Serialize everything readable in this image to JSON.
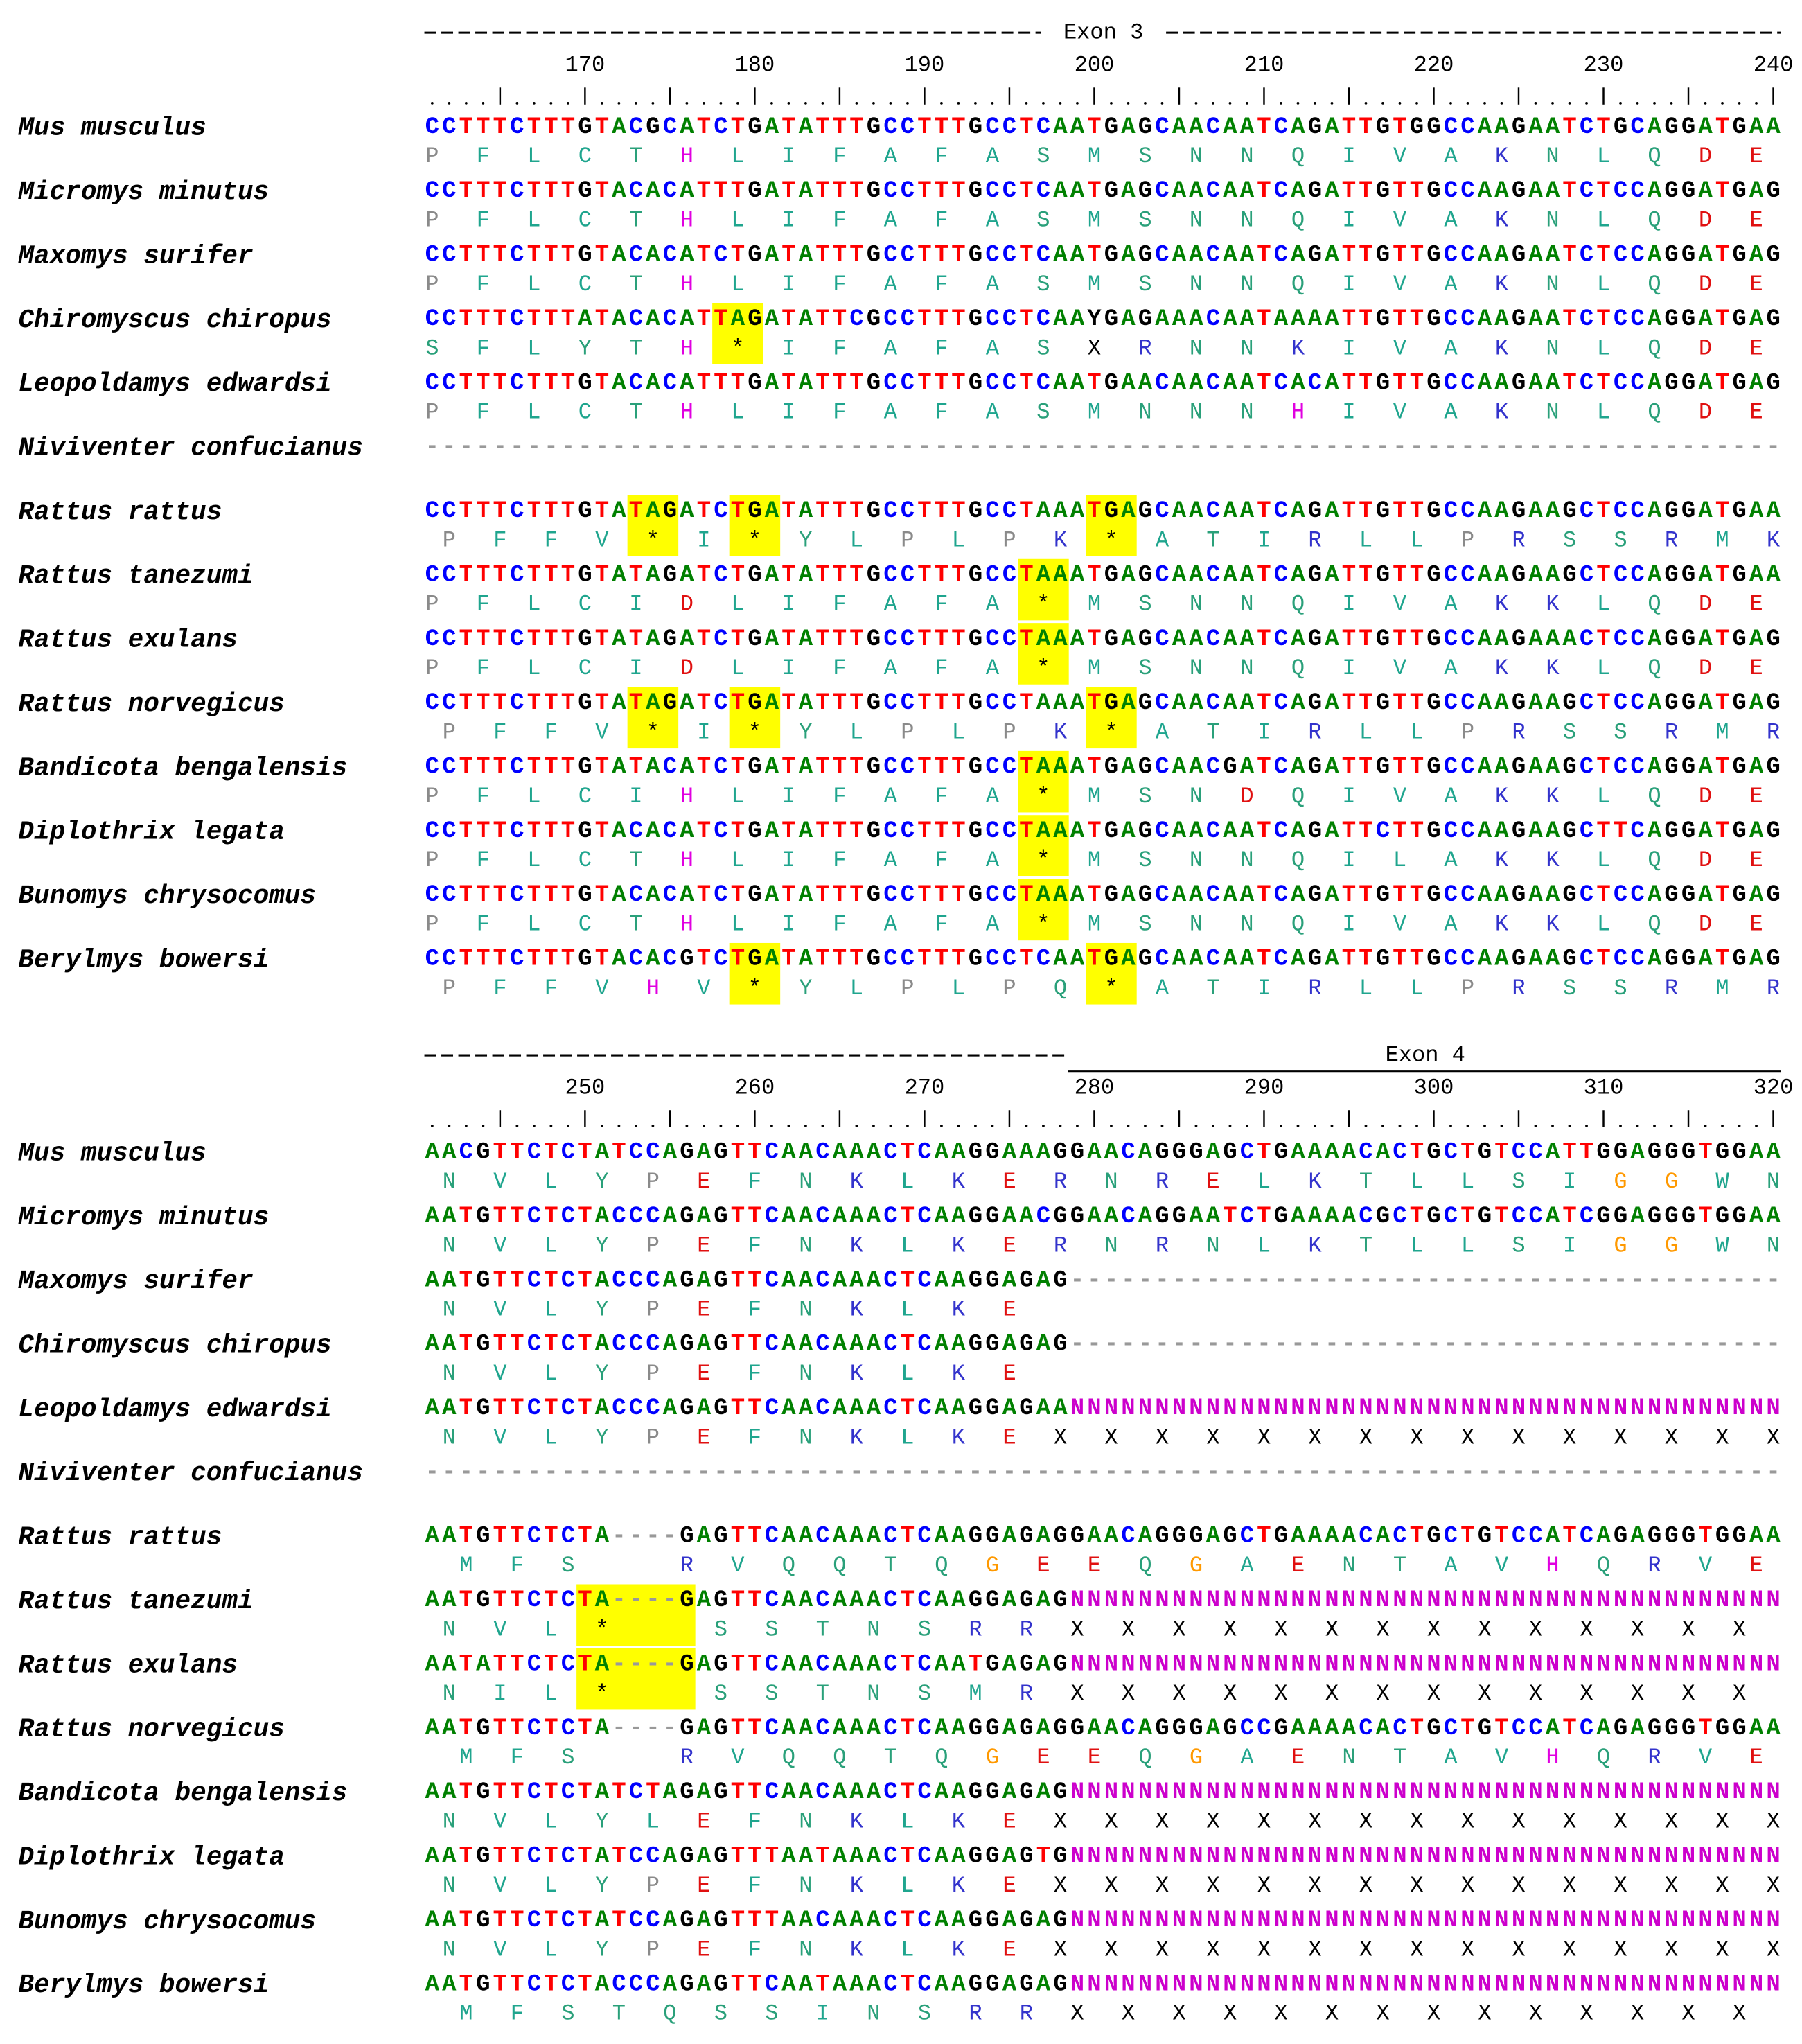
{
  "nucleotide_colors": {
    "A": "#008000",
    "C": "#0000ff",
    "G": "#000000",
    "T": "#ff0000",
    "N": "#cc00cc",
    "Y": "#000000",
    "-": "#999999"
  },
  "residue_colors": {
    "P": "#8a8a8a",
    "F": "#1fa58e",
    "L": "#1fa58e",
    "I": "#1fa58e",
    "A": "#1fa58e",
    "V": "#1fa58e",
    "M": "#1fa58e",
    "W": "#1fa58e",
    "C": "#1fa58e",
    "S": "#2aa07a",
    "T": "#2aa07a",
    "N": "#2aa07a",
    "Q": "#2aa07a",
    "Y": "#2aa07a",
    "H": "#e000e0",
    "K": "#3333cc",
    "R": "#3333cc",
    "D": "#e01010",
    "E": "#e01010",
    "G": "#ff9900",
    "X": "#000000",
    "*": "#000000"
  },
  "highlight_color": "#ffff00",
  "blocks": [
    {
      "exon_label": "Exon 3",
      "ruler_numbers": [
        170,
        180,
        190,
        200,
        210,
        220,
        230,
        240
      ],
      "rows": [
        {
          "species": "Mus musculus",
          "dna": "CCTTTCTTTGTACGCATCTGATATTTGCCTTTGCCTCAATGAGCAACAATCAGATTGTGGCCAAGAATCTGCAGGATGAA",
          "protein": "P  F  L  C  T  H  L  I  F  A  F  A  S  M  S  N  N  Q  I  V  A  K  N  L  Q  D  E"
        },
        {
          "species": "Micromys minutus",
          "dna": "CCTTTCTTTGTACACATTTGATATTTGCCTTTGCCTCAATGAGCAACAATCAGATTGTTGCCAAGAATCTCCAGGATGAG",
          "protein": "P  F  L  C  T  H  L  I  F  A  F  A  S  M  S  N  N  Q  I  V  A  K  N  L  Q  D  E"
        },
        {
          "species": "Maxomys surifer",
          "dna": "CCTTTCTTTGTACACATCTGATATTTGCCTTTGCCTCAATGAGCAACAATCAGATTGTTGCCAAGAATCTCCAGGATGAG",
          "protein": "P  F  L  C  T  H  L  I  F  A  F  A  S  M  S  N  N  Q  I  V  A  K  N  L  Q  D  E"
        },
        {
          "species": "Chiromyscus chiropus",
          "dna": "CCTTTCTTTATACACATTAGATATTCGCCTTTGCCTCAAYGAGAAACAATAAAATTGTTGCCAAGAATCTCCAGGATGAG",
          "protein": "S  F  L  Y  T  H  *  I  F  A  F  A  S  X  R  N  N  K  I  V  A  K  N  L  Q  D  E"
        },
        {
          "species": "Leopoldamys edwardsi",
          "dna": "CCTTTCTTTGTACACATTTGATATTTGCCTTTGCCTCAATGAACAACAATCACATTGTTGCCAAGAATCTCCAGGATGAG",
          "protein": "P  F  L  C  T  H  L  I  F  A  F  A  S  M  N  N  N  H  I  V  A  K  N  L  Q  D  E"
        },
        {
          "species": "Niviventer confucianus",
          "dna": "--------------------------------------------------------------------------------"
        },
        {
          "species": "Rattus rattus",
          "dna": "CCTTTCTTTGTATAGATCTGATATTTGCCTTTGCCTAAATGAGCAACAATCAGATTGTTGCCAAGAAGCTCCAGGATGAA",
          "protein": " P  F  F  V  *  I  *  Y  L  P  L  P  K  *  A  T  I  R  L  L  P  R  S  S  R  M  K"
        },
        {
          "species": "Rattus tanezumi",
          "dna": "CCTTTCTTTGTATAGATCTGATATTTGCCTTTGCCTAAATGAGCAACAATCAGATTGTTGCCAAGAAGCTCCAGGATGAA",
          "protein": "P  F  L  C  I  D  L  I  F  A  F  A  *  M  S  N  N  Q  I  V  A  K  K  L  Q  D  E"
        },
        {
          "species": "Rattus exulans",
          "dna": "CCTTTCTTTGTATAGATCTGATATTTGCCTTTGCCTAAATGAGCAACAATCAGATTGTTGCCAAGAAACTCCAGGATGAG",
          "protein": "P  F  L  C  I  D  L  I  F  A  F  A  *  M  S  N  N  Q  I  V  A  K  K  L  Q  D  E"
        },
        {
          "species": "Rattus norvegicus",
          "dna": "CCTTTCTTTGTATAGATCTGATATTTGCCTTTGCCTAAATGAGCAACAATCAGATTGTTGCCAAGAAGCTCCAGGATGAG",
          "protein": " P  F  F  V  *  I  *  Y  L  P  L  P  K  *  A  T  I  R  L  L  P  R  S  S  R  M  R"
        },
        {
          "species": "Bandicota bengalensis",
          "dna": "CCTTTCTTTGTATACATCTGATATTTGCCTTTGCCTAAATGAGCAACGATCAGATTGTTGCCAAGAAGCTCCAGGATGAG",
          "protein": "P  F  L  C  I  H  L  I  F  A  F  A  *  M  S  N  D  Q  I  V  A  K  K  L  Q  D  E"
        },
        {
          "species": "Diplothrix legata",
          "dna": "CCTTTCTTTGTACACATCTGATATTTGCCTTTGCCTAAATGAGCAACAATCAGATTCTTGCCAAGAAGCTTCAGGATGAG",
          "protein": "P  F  L  C  T  H  L  I  F  A  F  A  *  M  S  N  N  Q  I  L  A  K  K  L  Q  D  E"
        },
        {
          "species": "Bunomys chrysocomus",
          "dna": "CCTTTCTTTGTACACATCTGATATTTGCCTTTGCCTAAATGAGCAACAATCAGATTGTTGCCAAGAAGCTCCAGGATGAG",
          "protein": "P  F  L  C  T  H  L  I  F  A  F  A  *  M  S  N  N  Q  I  V  A  K  K  L  Q  D  E"
        },
        {
          "species": "Berylmys bowersi",
          "dna": "CCTTTCTTTGTACACGTCTGATATTTGCCTTTGCCTCAATGAGCAACAATCAGATTGTTGCCAAGAAGCTCCAGGATGAG",
          "protein": " P  F  F  V  H  V  *  Y  L  P  L  P  Q  *  A  T  I  R  L  L  P  R  S  S  R  M  R"
        }
      ]
    },
    {
      "exon_label": "Exon 4",
      "ruler_numbers": [
        250,
        260,
        270,
        280,
        290,
        300,
        310,
        320
      ],
      "rows": [
        {
          "species": "Mus musculus",
          "dna": "AACGTTCTCTATCCAGAGTTCAACAAACTCAAGGAAAGGAACAGGGAGCTGAAAACACTGCTGTCCATTGGAGGGTGGAA",
          "protein": " N  V  L  Y  P  E  F  N  K  L  K  E  R  N  R  E  L  K  T  L  L  S  I  G  G  W  N"
        },
        {
          "species": "Micromys minutus",
          "dna": "AATGTTCTCTACCCAGAGTTCAACAAACTCAAGGAACGGAACAGGAATCTGAAAACGCTGCTGTCCATCGGAGGGTGGAA",
          "protein": " N  V  L  Y  P  E  F  N  K  L  K  E  R  N  R  N  L  K  T  L  L  S  I  G  G  W  N"
        },
        {
          "species": "Maxomys surifer",
          "dna": "AATGTTCTCTACCCAGAGTTCAACAAACTCAAGGAGAG------------------------------------------",
          "protein": " N  V  L  Y  P  E  F  N  K  L  K  E"
        },
        {
          "species": "Chiromyscus chiropus",
          "dna": "AATGTTCTCTACCCAGAGTTCAACAAACTCAAGGAGAG------------------------------------------",
          "protein": " N  V  L  Y  P  E  F  N  K  L  K  E"
        },
        {
          "species": "Leopoldamys edwardsi",
          "dna": "AATGTTCTCTACCCAGAGTTCAACAAACTCAAGGAGAANNNNNNNNNNNNNNNNNNNNNNNNNNNNNNNNNNNNNNNNNN",
          "protein": " N  V  L  Y  P  E  F  N  K  L  K  E  X  X  X  X  X  X  X  X  X  X  X  X  X  X  X"
        },
        {
          "species": "Niviventer confucianus",
          "dna": "--------------------------------------------------------------------------------"
        },
        {
          "species": "Rattus rattus",
          "dna": "AATGTTCTCTA----GAGTTCAACAAACTCAAGGAGAGGAACAGGGAGCTGAAAACACTGCTGTCCATCAGAGGGTGGAA",
          "protein": "  M  F  S      R  V  Q  Q  T  Q  G  E  E  Q  G  A  E  N  T  A  V  H  Q  R  V  E"
        },
        {
          "species": "Rattus tanezumi",
          "dna": "AATGTTCTCTA----GAGTTCAACAAACTCAAGGAGAGNNNNNNNNNNNNNNNNNNNNNNNNNNNNNNNNNNNNNNNNNN",
          "protein": " N  V  L  *      S  S  T  N  S  R  R  X  X  X  X  X  X  X  X  X  X  X  X  X  X"
        },
        {
          "species": "Rattus exulans",
          "dna": "AATATTCTCTA----GAGTTCAACAAACTCAATGAGAGNNNNNNNNNNNNNNNNNNNNNNNNNNNNNNNNNNNNNNNNNN",
          "protein": " N  I  L  *      S  S  T  N  S  M  R  X  X  X  X  X  X  X  X  X  X  X  X  X  X"
        },
        {
          "species": "Rattus norvegicus",
          "dna": "AATGTTCTCTA----GAGTTCAACAAACTCAAGGAGAGGAACAGGGAGCCGAAAACACTGCTGTCCATCAGAGGGTGGAA",
          "protein": "  M  F  S      R  V  Q  Q  T  Q  G  E  E  Q  G  A  E  N  T  A  V  H  Q  R  V  E"
        },
        {
          "species": "Bandicota bengalensis",
          "dna": "AATGTTCTCTATCTAGAGTTCAACAAACTCAAGGAGAGNNNNNNNNNNNNNNNNNNNNNNNNNNNNNNNNNNNNNNNNNN",
          "protein": " N  V  L  Y  L  E  F  N  K  L  K  E  X  X  X  X  X  X  X  X  X  X  X  X  X  X  X"
        },
        {
          "species": "Diplothrix legata",
          "dna": "AATGTTCTCTATCCAGAGTTTAATAAACTCAAGGAGTGNNNNNNNNNNNNNNNNNNNNNNNNNNNNNNNNNNNNNNNNNN",
          "protein": " N  V  L  Y  P  E  F  N  K  L  K  E  X  X  X  X  X  X  X  X  X  X  X  X  X  X  X"
        },
        {
          "species": "Bunomys chrysocomus",
          "dna": "AATGTTCTCTATCCAGAGTTTAACAAACTCAAGGAGAGNNNNNNNNNNNNNNNNNNNNNNNNNNNNNNNNNNNNNNNNNN",
          "protein": " N  V  L  Y  P  E  F  N  K  L  K  E  X  X  X  X  X  X  X  X  X  X  X  X  X  X  X"
        },
        {
          "species": "Berylmys bowersi",
          "dna": "AATGTTCTCTACCCAGAGTTCAATAAACTCAAGGAGAGNNNNNNNNNNNNNNNNNNNNNNNNNNNNNNNNNNNNNNNNNN",
          "protein": "  M  F  S  T  Q  S  S  I  N  S  R  R  X  X  X  X  X  X  X  X  X  X  X  X  X  X"
        }
      ]
    }
  ]
}
